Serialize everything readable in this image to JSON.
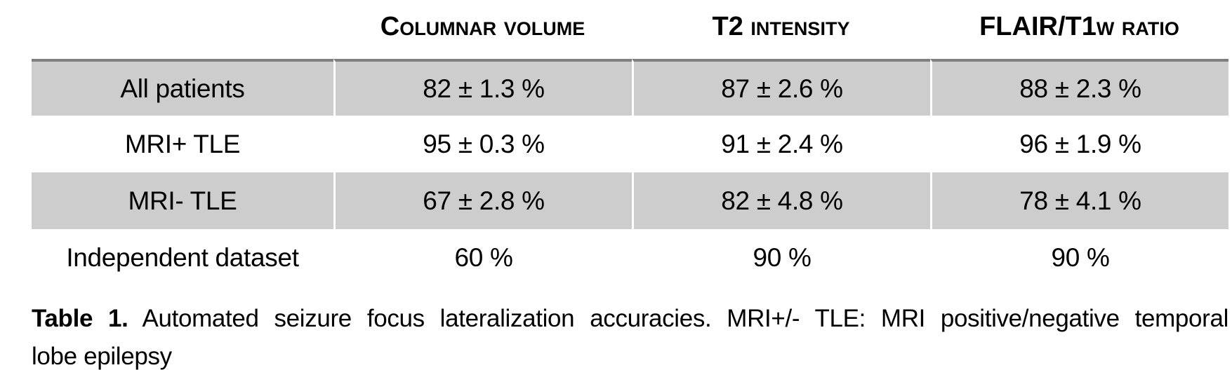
{
  "table": {
    "columns": [
      {
        "label": ""
      },
      {
        "label": "Columnar volume"
      },
      {
        "label": "T2 intensity"
      },
      {
        "label": "FLAIR/T1w ratio"
      }
    ],
    "rows": [
      {
        "label": "All patients",
        "columnar_volume": "82 ± 1.3 %",
        "t2_intensity": "87 ± 2.6 %",
        "flair_t1w_ratio": "88 ± 2.3 %"
      },
      {
        "label": "MRI+ TLE",
        "columnar_volume": "95 ± 0.3 %",
        "t2_intensity": "91 ± 2.4 %",
        "flair_t1w_ratio": "96 ± 1.9 %"
      },
      {
        "label": "MRI- TLE",
        "columnar_volume": "67 ± 2.8 %",
        "t2_intensity": "82 ± 4.8 %",
        "flair_t1w_ratio": "78 ± 4.1 %"
      },
      {
        "label": "Independent dataset",
        "columnar_volume": "60 %",
        "t2_intensity": "90 %",
        "flair_t1w_ratio": "90 %"
      }
    ]
  },
  "caption": {
    "label": "Table 1.",
    "line1": "Automated seizure focus lateralization accuracies. MRI+/- TLE: MRI positive/negative temporal",
    "line2": "lobe epilepsy",
    "full_text": "Table 1. Automated seizure focus lateralization accuracies. MRI+/- TLE: MRI positive/negative temporal lobe epilepsy"
  },
  "colors": {
    "row_shade": "#cdcdcd",
    "header_rule": "#7f7f7f",
    "column_separator": "#ffffff",
    "text": "#000000",
    "background": "#ffffff"
  }
}
